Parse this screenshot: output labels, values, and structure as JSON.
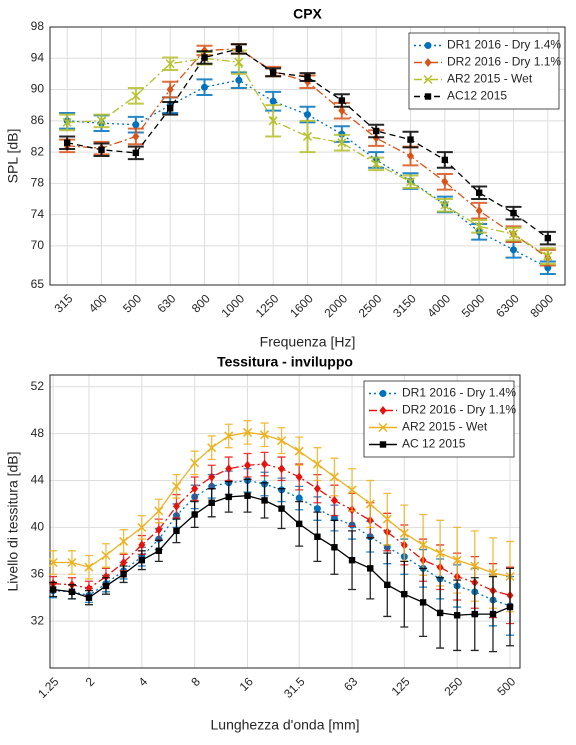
{
  "chart_data": [
    {
      "type": "line",
      "title": "CPX",
      "xlabel": "Frequenza [Hz]",
      "ylabel": "SPL [dB]",
      "categories": [
        "315",
        "400",
        "500",
        "630",
        "800",
        "1000",
        "1250",
        "1600",
        "2000",
        "2500",
        "3150",
        "4000",
        "5000",
        "6300",
        "8000"
      ],
      "ylim": [
        65,
        98
      ],
      "yticks": [
        65,
        70,
        74,
        78,
        82,
        86,
        90,
        94,
        98
      ],
      "grid": true,
      "legend": "northeast",
      "series": [
        {
          "name": "DR1 2016 - Dry 1.4%",
          "color": "#0072bd",
          "marker": "circle",
          "linestyle": "dotted",
          "values": [
            86,
            85.7,
            85.5,
            88,
            90.3,
            91.2,
            88.5,
            86.8,
            84.3,
            81,
            78.3,
            75.3,
            71.8,
            69.5,
            67.2
          ],
          "errors": [
            1,
            1,
            1,
            1,
            1,
            1,
            1.2,
            1,
            1,
            1,
            1,
            1,
            1,
            1,
            0.8
          ]
        },
        {
          "name": "DR2 2016 - Dry 1.1%",
          "color": "#d95319",
          "marker": "diamond",
          "linestyle": "dashdot",
          "values": [
            82.8,
            82.5,
            84,
            90,
            95,
            95.2,
            92.3,
            91,
            87.3,
            83.8,
            81.5,
            78.2,
            74.5,
            71.5,
            68.5
          ],
          "errors": [
            0.8,
            0.8,
            1,
            1,
            0.6,
            0.6,
            0.6,
            0.8,
            1,
            1,
            1.2,
            1,
            1,
            1,
            1
          ]
        },
        {
          "name": "AR2 2015 - Wet",
          "color": "#b5c02a",
          "marker": "x",
          "linestyle": "dashdot",
          "values": [
            85.8,
            86,
            89.2,
            93.3,
            94,
            93.5,
            86,
            84,
            83.2,
            80.5,
            78.2,
            75.2,
            72.5,
            71.5,
            68.7
          ],
          "errors": [
            1,
            0.8,
            1,
            0.8,
            0.8,
            1.5,
            2,
            2,
            1,
            0.8,
            0.8,
            0.8,
            0.8,
            0.8,
            1
          ]
        },
        {
          "name": "AC12 2015",
          "color": "#000000",
          "marker": "square",
          "linestyle": "dashed",
          "values": [
            83.2,
            82.3,
            81.9,
            87.6,
            94.1,
            95.2,
            92.2,
            91.6,
            88.6,
            84.7,
            83.6,
            81,
            76.8,
            74.2,
            71
          ],
          "errors": [
            0.8,
            0.8,
            0.8,
            0.8,
            0.8,
            0.6,
            0.5,
            0.5,
            0.8,
            0.8,
            1,
            1,
            0.8,
            0.8,
            0.8
          ]
        }
      ]
    },
    {
      "type": "line",
      "title": "Tessitura - inviluppo",
      "xlabel": "Lunghezza d'onda [mm]",
      "ylabel": "Livello di tessitura [dB]",
      "xscale": "log",
      "xlim": [
        1.2,
        570
      ],
      "xticks": [
        1.25,
        2,
        4,
        8,
        16,
        31.5,
        63,
        125,
        250,
        500
      ],
      "ylim": [
        28,
        53
      ],
      "yticks": [
        32,
        36,
        40,
        44,
        48,
        52
      ],
      "grid": true,
      "legend": "northeast",
      "x": [
        1.25,
        1.6,
        2,
        2.5,
        3.15,
        4,
        5,
        6.3,
        8,
        10,
        12.5,
        16,
        20,
        25,
        31.5,
        40,
        50,
        63,
        80,
        100,
        125,
        160,
        200,
        250,
        315,
        400,
        500
      ],
      "series": [
        {
          "name": "DR1 2016 - Dry 1.4%",
          "color": "#0072bd",
          "marker": "circle",
          "linestyle": "dotted",
          "values": [
            34.6,
            34.5,
            34.2,
            35.2,
            36.3,
            37.5,
            39,
            41,
            42.6,
            43.5,
            43.8,
            44,
            43.7,
            43.2,
            42.5,
            41.6,
            40.8,
            40.2,
            39.2,
            38.3,
            37.5,
            36.5,
            35.6,
            35,
            34.5,
            33.8,
            33.3
          ],
          "errors": [
            0.6,
            0.6,
            0.6,
            0.7,
            0.7,
            0.8,
            0.9,
            1,
            1,
            1,
            1,
            1,
            1,
            1,
            1,
            1,
            1.1,
            1.2,
            1.3,
            1.4,
            1.5,
            1.6,
            1.7,
            1.8,
            2,
            2.2,
            2.5
          ]
        },
        {
          "name": "DR2 2016 - Dry 1.1%",
          "color": "#e8120c",
          "marker": "diamond",
          "linestyle": "dashdot",
          "values": [
            35.2,
            35.1,
            34.8,
            35.8,
            37,
            38.5,
            39.8,
            41.8,
            43.3,
            44.3,
            45,
            45.3,
            45.4,
            45,
            44.3,
            43.3,
            42.3,
            41.5,
            40.6,
            39.6,
            38.5,
            37.2,
            36.6,
            35.8,
            35.3,
            34.6,
            34.2
          ],
          "errors": [
            0.6,
            0.6,
            0.6,
            0.7,
            0.7,
            0.8,
            0.9,
            1,
            1,
            1,
            1,
            1,
            1,
            1,
            1.1,
            1.2,
            1.3,
            1.4,
            1.5,
            1.6,
            1.7,
            1.8,
            1.9,
            2,
            2.2,
            2.3,
            2.4
          ]
        },
        {
          "name": "AR2 2015 - Wet",
          "color": "#edb120",
          "marker": "x",
          "linestyle": "solid",
          "values": [
            37,
            37,
            36.6,
            37.6,
            38.8,
            40,
            41.4,
            43.5,
            45.5,
            46.8,
            47.8,
            48.1,
            47.9,
            47.4,
            46.5,
            45.4,
            44.3,
            43.2,
            42,
            40.7,
            39.5,
            38.5,
            37.8,
            37.2,
            36.7,
            36.1,
            35.8
          ],
          "errors": [
            1,
            1,
            1,
            1,
            1,
            1,
            1,
            1,
            1,
            1,
            1,
            1,
            1,
            1.1,
            1.2,
            1.4,
            1.6,
            1.8,
            2,
            2.2,
            2.4,
            2.6,
            2.8,
            2.8,
            3,
            3,
            3
          ]
        },
        {
          "name": "AC 12 2015",
          "color": "#000000",
          "marker": "square",
          "linestyle": "solid",
          "values": [
            34.7,
            34.5,
            34,
            35,
            36,
            37.2,
            38,
            39.7,
            41.1,
            42.1,
            42.6,
            42.7,
            42.3,
            41.6,
            40.3,
            39.2,
            38.3,
            37.2,
            36.5,
            35.1,
            34.3,
            33.6,
            32.7,
            32.5,
            32.6,
            32.6,
            33.2
          ],
          "errors": [
            0.6,
            0.6,
            0.6,
            0.7,
            0.7,
            0.8,
            0.9,
            1,
            1.1,
            1.2,
            1.3,
            1.4,
            1.5,
            1.7,
            1.9,
            2.1,
            2.3,
            2.5,
            2.6,
            2.7,
            2.8,
            2.9,
            3,
            3,
            3.1,
            3.2,
            3.3
          ]
        }
      ]
    }
  ]
}
